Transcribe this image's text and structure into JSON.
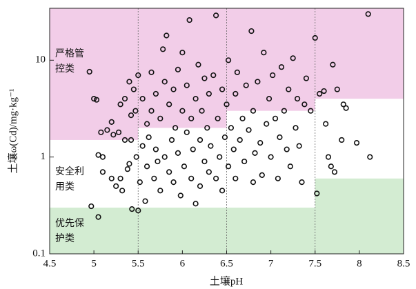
{
  "chart_data": {
    "type": "scatter",
    "x_label": "土壤pH",
    "y_label": "土壤ω(Cd)/mg·kg⁻¹",
    "xlim": [
      4.5,
      8.5
    ],
    "xticks": [
      4.5,
      5.0,
      5.5,
      6.0,
      6.5,
      7.0,
      7.5,
      8.0,
      8.5
    ],
    "ylim": [
      0.1,
      34.4
    ],
    "yticks": [
      0.1,
      1,
      10
    ],
    "log_y": true,
    "ph_breaks": [
      5.5,
      6.5,
      7.5
    ],
    "screening_values": [
      0.3,
      0.3,
      0.3,
      0.6
    ],
    "intervention_values": [
      1.5,
      2.0,
      3.0,
      4.0
    ],
    "control_color": "#f2cde8",
    "priority_color": "#d3ecd2",
    "marker_color": "#111111",
    "zone_labels": {
      "control": [
        "严格管",
        "控类"
      ],
      "safe": [
        "安全利",
        "用类"
      ],
      "priority": [
        "优先保",
        "护类"
      ]
    },
    "x": [
      4.95,
      4.97,
      5.0,
      5.03,
      5.05,
      5.08,
      5.05,
      5.1,
      5.1,
      5.15,
      5.2,
      5.2,
      5.22,
      5.25,
      5.28,
      5.3,
      5.3,
      5.32,
      5.35,
      5.35,
      5.38,
      5.4,
      5.4,
      5.42,
      5.42,
      5.43,
      5.45,
      5.47,
      5.48,
      5.5,
      5.5,
      5.52,
      5.55,
      5.55,
      5.58,
      5.6,
      5.6,
      5.62,
      5.65,
      5.65,
      5.68,
      5.7,
      5.7,
      5.72,
      5.75,
      5.75,
      5.78,
      5.8,
      5.8,
      5.82,
      5.85,
      5.85,
      5.88,
      5.9,
      5.9,
      5.92,
      5.95,
      5.95,
      5.98,
      6.0,
      6.0,
      6.02,
      6.05,
      6.05,
      6.08,
      6.1,
      6.1,
      6.12,
      6.15,
      6.15,
      6.18,
      6.2,
      6.2,
      6.22,
      6.25,
      6.25,
      6.28,
      6.3,
      6.3,
      6.32,
      6.35,
      6.38,
      6.38,
      6.4,
      6.42,
      6.45,
      6.45,
      6.48,
      6.5,
      6.52,
      6.52,
      6.55,
      6.58,
      6.6,
      6.6,
      6.62,
      6.65,
      6.68,
      6.7,
      6.72,
      6.75,
      6.78,
      6.8,
      6.8,
      6.82,
      6.85,
      6.88,
      6.9,
      6.92,
      6.95,
      6.98,
      7.0,
      7.02,
      7.05,
      7.08,
      7.1,
      7.12,
      7.15,
      7.18,
      7.2,
      7.22,
      7.25,
      7.28,
      7.3,
      7.32,
      7.35,
      7.38,
      7.4,
      7.45,
      7.5,
      7.52,
      7.55,
      7.6,
      7.62,
      7.65,
      7.68,
      7.7,
      7.72,
      7.75,
      7.8,
      7.82,
      7.85,
      7.97,
      8.1,
      8.12
    ],
    "values": [
      7.6,
      0.31,
      4.0,
      3.9,
      0.24,
      1.8,
      1.05,
      1.0,
      0.7,
      1.9,
      2.3,
      0.6,
      1.7,
      0.5,
      1.8,
      3.5,
      0.6,
      0.45,
      1.5,
      4.0,
      0.75,
      6.0,
      0.85,
      2.7,
      1.5,
      0.29,
      5.0,
      3.0,
      1.0,
      7.0,
      0.28,
      0.55,
      1.3,
      4.0,
      0.35,
      0.8,
      2.2,
      1.6,
      3.0,
      7.5,
      0.6,
      1.2,
      4.5,
      0.9,
      2.5,
      0.45,
      13.0,
      6.0,
      1.0,
      18.0,
      3.5,
      0.7,
      1.5,
      5.0,
      0.55,
      2.0,
      8.0,
      1.1,
      0.4,
      3.0,
      12.0,
      0.8,
      1.8,
      5.5,
      26.0,
      0.6,
      2.5,
      1.2,
      4.0,
      0.33,
      9.0,
      1.5,
      0.5,
      3.0,
      6.5,
      0.9,
      2.0,
      0.7,
      4.5,
      1.3,
      7.0,
      29.0,
      0.6,
      2.5,
      1.0,
      5.0,
      0.45,
      1.6,
      3.5,
      10.0,
      0.8,
      2.0,
      1.2,
      4.5,
      0.6,
      7.5,
      1.5,
      2.5,
      0.9,
      5.5,
      1.9,
      20.0,
      3.0,
      0.55,
      1.1,
      6.0,
      1.4,
      0.65,
      12.0,
      2.2,
      4.0,
      1.0,
      7.0,
      2.5,
      0.6,
      1.6,
      8.5,
      3.0,
      1.2,
      5.0,
      0.8,
      10.5,
      2.0,
      4.0,
      1.3,
      0.55,
      3.5,
      6.5,
      3.0,
      17.0,
      0.42,
      4.5,
      4.8,
      2.2,
      1.0,
      0.8,
      9.0,
      0.7,
      5.0,
      1.5,
      3.5,
      3.2,
      1.4,
      30.0,
      1.0
    ]
  }
}
